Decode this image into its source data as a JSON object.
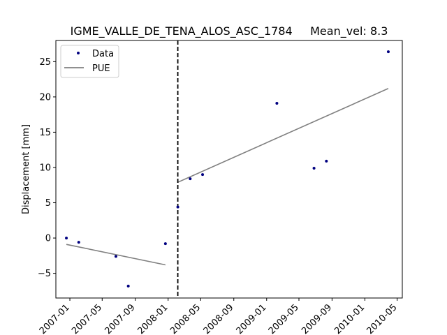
{
  "chart_data": {
    "type": "scatter",
    "title": "IGME_VALLE_DE_TENA_ALOS_ASC_1784     Mean_vel: 8.3",
    "xlabel": "",
    "ylabel": "Displacement [mm]",
    "xlim": [
      "2006-11-10",
      "2010-05-20"
    ],
    "ylim": [
      -8.5,
      28
    ],
    "x_ticks": [
      "2007-01-01",
      "2007-05-01",
      "2007-09-01",
      "2008-01-01",
      "2008-05-01",
      "2008-09-01",
      "2009-01-01",
      "2009-05-01",
      "2009-09-01",
      "2010-01-01",
      "2010-05-01"
    ],
    "x_tick_labels": [
      "2007-01",
      "2007-05",
      "2007-09",
      "2008-01",
      "2008-05",
      "2008-09",
      "2009-01",
      "2009-05",
      "2009-09",
      "2010-01",
      "2010-05"
    ],
    "y_ticks": [
      -5,
      0,
      5,
      10,
      15,
      20,
      25
    ],
    "y_tick_labels": [
      "−5",
      "0",
      "5",
      "10",
      "15",
      "20",
      "25"
    ],
    "grid": false,
    "legend": {
      "placement": "top-left",
      "entries": [
        "Data",
        "PUE"
      ]
    },
    "series": [
      {
        "name": "Data",
        "style": "points",
        "color": "#000080",
        "points": [
          {
            "x": "2006-12-19",
            "y": 0.0
          },
          {
            "x": "2007-02-03",
            "y": -0.6
          },
          {
            "x": "2007-06-21",
            "y": -2.6
          },
          {
            "x": "2007-08-06",
            "y": -6.8
          },
          {
            "x": "2007-12-22",
            "y": -0.8
          },
          {
            "x": "2008-02-06",
            "y": 4.4
          },
          {
            "x": "2008-03-23",
            "y": 8.4
          },
          {
            "x": "2008-05-08",
            "y": 9.0
          },
          {
            "x": "2009-02-08",
            "y": 19.1
          },
          {
            "x": "2009-06-26",
            "y": 9.9
          },
          {
            "x": "2009-08-11",
            "y": 10.9
          },
          {
            "x": "2010-03-29",
            "y": 26.4
          }
        ]
      },
      {
        "name": "PUE",
        "style": "line",
        "color": "#808080",
        "segments": [
          [
            {
              "x": "2006-12-19",
              "y": -0.9
            },
            {
              "x": "2007-12-22",
              "y": -3.8
            }
          ],
          [
            {
              "x": "2008-02-06",
              "y": 7.9
            },
            {
              "x": "2010-03-29",
              "y": 21.2
            }
          ]
        ]
      }
    ],
    "annotations": [
      {
        "type": "vline",
        "x": "2008-02-06",
        "style": "dashed",
        "color": "#000000"
      }
    ]
  }
}
